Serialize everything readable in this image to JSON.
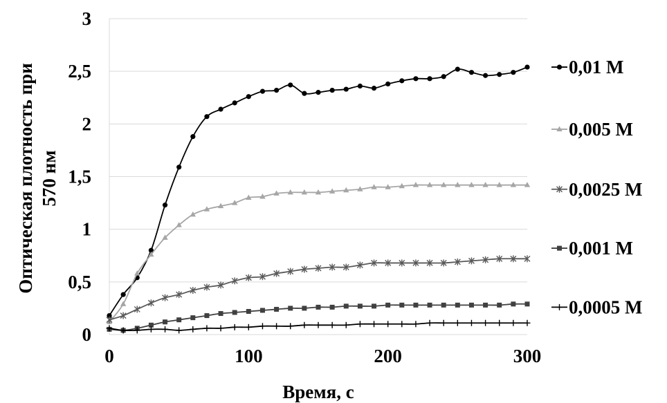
{
  "chart_data": {
    "type": "line",
    "title": "",
    "xlabel": "Время, с",
    "ylabel_lines": [
      "Оптическая плотность при",
      "570 нм"
    ],
    "xlim": [
      0,
      300
    ],
    "ylim": [
      0,
      3
    ],
    "x_ticks": [
      0,
      100,
      200,
      300
    ],
    "y_ticks": [
      0,
      0.5,
      1,
      1.5,
      2,
      2.5,
      3
    ],
    "x_tick_labels": [
      "0",
      "100",
      "200",
      "300"
    ],
    "y_tick_labels": [
      "0",
      "0,5",
      "1",
      "1,5",
      "2",
      "2,5",
      "3"
    ],
    "grid": "horizontal",
    "legend_position": "right",
    "x": [
      0,
      10,
      20,
      30,
      40,
      50,
      60,
      70,
      80,
      90,
      100,
      110,
      120,
      130,
      140,
      150,
      160,
      170,
      180,
      190,
      200,
      210,
      220,
      230,
      240,
      250,
      260,
      270,
      280,
      290,
      300
    ],
    "series": [
      {
        "name": "0,01 М",
        "color": "#000000",
        "marker": "circle",
        "values": [
          0.18,
          0.38,
          0.54,
          0.8,
          1.23,
          1.59,
          1.88,
          2.07,
          2.14,
          2.2,
          2.26,
          2.31,
          2.32,
          2.37,
          2.29,
          2.3,
          2.32,
          2.33,
          2.36,
          2.34,
          2.38,
          2.41,
          2.43,
          2.43,
          2.45,
          2.52,
          2.49,
          2.46,
          2.47,
          2.49,
          2.54
        ]
      },
      {
        "name": "0,005 М",
        "color": "#a6a6a6",
        "marker": "triangle",
        "values": [
          0.12,
          0.29,
          0.58,
          0.76,
          0.92,
          1.04,
          1.14,
          1.19,
          1.22,
          1.25,
          1.3,
          1.31,
          1.34,
          1.35,
          1.35,
          1.35,
          1.36,
          1.37,
          1.38,
          1.4,
          1.4,
          1.41,
          1.42,
          1.42,
          1.42,
          1.42,
          1.42,
          1.42,
          1.42,
          1.42,
          1.42
        ]
      },
      {
        "name": "0,0025 М",
        "color": "#595959",
        "marker": "star",
        "values": [
          0.14,
          0.18,
          0.24,
          0.3,
          0.35,
          0.38,
          0.42,
          0.45,
          0.47,
          0.51,
          0.54,
          0.55,
          0.58,
          0.6,
          0.62,
          0.63,
          0.64,
          0.64,
          0.66,
          0.68,
          0.68,
          0.68,
          0.68,
          0.68,
          0.68,
          0.69,
          0.7,
          0.71,
          0.72,
          0.72,
          0.72
        ]
      },
      {
        "name": "0,001 М",
        "color": "#404040",
        "marker": "square",
        "values": [
          0.05,
          0.04,
          0.06,
          0.09,
          0.12,
          0.14,
          0.16,
          0.18,
          0.2,
          0.21,
          0.22,
          0.23,
          0.24,
          0.25,
          0.25,
          0.26,
          0.26,
          0.27,
          0.27,
          0.27,
          0.28,
          0.28,
          0.28,
          0.28,
          0.28,
          0.28,
          0.28,
          0.28,
          0.28,
          0.29,
          0.29
        ]
      },
      {
        "name": "0,0005 М",
        "color": "#000000",
        "marker": "plus",
        "values": [
          0.06,
          0.04,
          0.04,
          0.05,
          0.05,
          0.04,
          0.05,
          0.06,
          0.06,
          0.07,
          0.07,
          0.08,
          0.08,
          0.08,
          0.09,
          0.09,
          0.09,
          0.09,
          0.1,
          0.1,
          0.1,
          0.1,
          0.1,
          0.11,
          0.11,
          0.11,
          0.11,
          0.11,
          0.11,
          0.11,
          0.11
        ]
      }
    ]
  }
}
